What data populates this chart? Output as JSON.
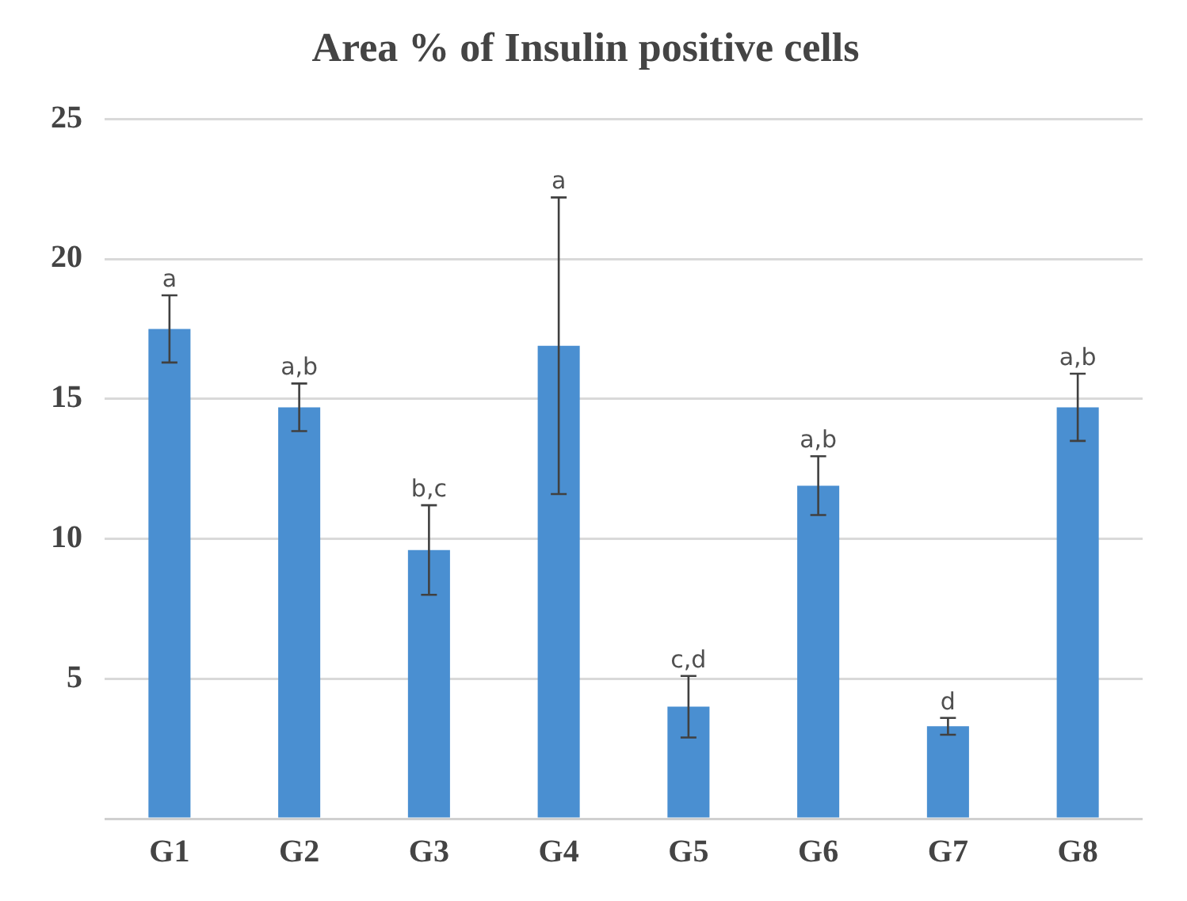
{
  "chart_data": {
    "type": "bar",
    "title": "Area % of Insulin positive cells",
    "categories": [
      "G1",
      "G2",
      "G3",
      "G4",
      "G5",
      "G6",
      "G7",
      "G8"
    ],
    "values": [
      17.5,
      14.7,
      9.6,
      16.9,
      4.0,
      11.9,
      3.3,
      14.7
    ],
    "errors": [
      1.2,
      0.85,
      1.6,
      5.3,
      1.1,
      1.05,
      0.3,
      1.2
    ],
    "color": "#4a8fd1",
    "ylim": [
      0,
      25
    ],
    "yticks": [
      5,
      10,
      15,
      20,
      25
    ],
    "grid": "y",
    "legend": false,
    "annotations": [
      {
        "text": "a",
        "x": "G1",
        "y": 18.7
      },
      {
        "text": "a,b",
        "x": "G2",
        "y": 15.55
      },
      {
        "text": "b,c",
        "x": "G3",
        "y": 11.2
      },
      {
        "text": "a",
        "x": "G4",
        "y": 22.2
      },
      {
        "text": "c,d",
        "x": "G5",
        "y": 5.1
      },
      {
        "text": "a,b",
        "x": "G6",
        "y": 12.95
      },
      {
        "text": "d",
        "x": "G7",
        "y": 3.6
      },
      {
        "text": "a,b",
        "x": "G8",
        "y": 15.9
      }
    ]
  }
}
